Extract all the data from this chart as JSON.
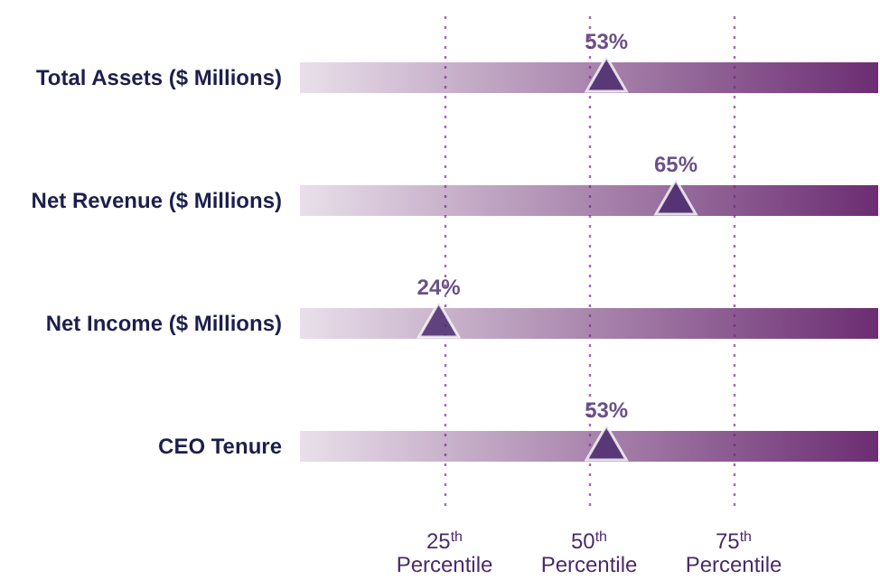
{
  "chart_data": {
    "type": "bar",
    "orientation": "horizontal",
    "categories": [
      "Total Assets ($ Millions)",
      "Net Revenue ($ Millions)",
      "Net Income ($ Millions)",
      "CEO Tenure"
    ],
    "series": [
      {
        "type": "bar",
        "color": "#6b2d72",
        "values": [
          100,
          100,
          100,
          100
        ]
      },
      {
        "type": "scatter",
        "color": "#45266a",
        "values": [
          53,
          65,
          24,
          53
        ],
        "value_labels": [
          "53%",
          "65%",
          "24%",
          "53%"
        ]
      }
    ],
    "marker": "triangle",
    "xlim": [
      0,
      100
    ],
    "xticks": [
      {
        "value": 25,
        "label": "25$^{th}$ Percentile"
      },
      {
        "value": 50,
        "label": "50$^{th}$ Percentile"
      },
      {
        "value": 75,
        "label": "75$^{th}$ Percentile"
      }
    ],
    "grid": "x"
  }
}
